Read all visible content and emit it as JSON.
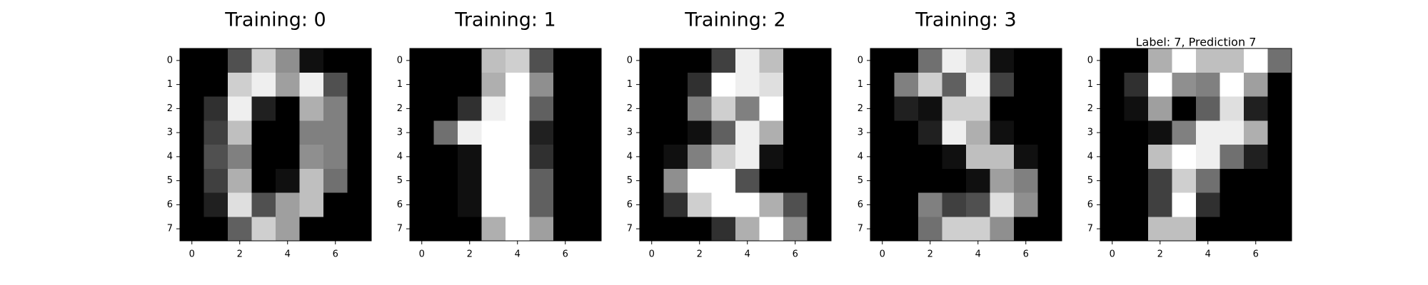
{
  "figure": {
    "background": "#ffffff",
    "colormap": "gray",
    "pixel_value_range": [
      0,
      16
    ]
  },
  "chart_data": [
    {
      "type": "heatmap",
      "title": "Training: 0",
      "x_ticks": [
        "0",
        "2",
        "4",
        "6"
      ],
      "y_ticks": [
        "0",
        "1",
        "2",
        "3",
        "4",
        "5",
        "6",
        "7"
      ],
      "values": [
        [
          0,
          0,
          5,
          13,
          9,
          1,
          0,
          0
        ],
        [
          0,
          0,
          13,
          15,
          10,
          15,
          5,
          0
        ],
        [
          0,
          3,
          15,
          2,
          0,
          11,
          8,
          0
        ],
        [
          0,
          4,
          12,
          0,
          0,
          8,
          8,
          0
        ],
        [
          0,
          5,
          8,
          0,
          0,
          9,
          8,
          0
        ],
        [
          0,
          4,
          11,
          0,
          1,
          12,
          7,
          0
        ],
        [
          0,
          2,
          14,
          5,
          10,
          12,
          0,
          0
        ],
        [
          0,
          0,
          6,
          13,
          10,
          0,
          0,
          0
        ]
      ]
    },
    {
      "type": "heatmap",
      "title": "Training: 1",
      "x_ticks": [
        "0",
        "2",
        "4",
        "6"
      ],
      "y_ticks": [
        "0",
        "1",
        "2",
        "3",
        "4",
        "5",
        "6",
        "7"
      ],
      "values": [
        [
          0,
          0,
          0,
          12,
          13,
          5,
          0,
          0
        ],
        [
          0,
          0,
          0,
          11,
          16,
          9,
          0,
          0
        ],
        [
          0,
          0,
          3,
          15,
          16,
          6,
          0,
          0
        ],
        [
          0,
          7,
          15,
          16,
          16,
          2,
          0,
          0
        ],
        [
          0,
          0,
          1,
          16,
          16,
          3,
          0,
          0
        ],
        [
          0,
          0,
          1,
          16,
          16,
          6,
          0,
          0
        ],
        [
          0,
          0,
          1,
          16,
          16,
          6,
          0,
          0
        ],
        [
          0,
          0,
          0,
          11,
          16,
          10,
          0,
          0
        ]
      ]
    },
    {
      "type": "heatmap",
      "title": "Training: 2",
      "x_ticks": [
        "0",
        "2",
        "4",
        "6"
      ],
      "y_ticks": [
        "0",
        "1",
        "2",
        "3",
        "4",
        "5",
        "6",
        "7"
      ],
      "values": [
        [
          0,
          0,
          0,
          4,
          15,
          12,
          0,
          0
        ],
        [
          0,
          0,
          3,
          16,
          15,
          14,
          0,
          0
        ],
        [
          0,
          0,
          8,
          13,
          8,
          16,
          0,
          0
        ],
        [
          0,
          0,
          1,
          6,
          15,
          11,
          0,
          0
        ],
        [
          0,
          1,
          8,
          13,
          15,
          1,
          0,
          0
        ],
        [
          0,
          9,
          16,
          16,
          5,
          0,
          0,
          0
        ],
        [
          0,
          3,
          13,
          16,
          16,
          11,
          5,
          0
        ],
        [
          0,
          0,
          0,
          3,
          11,
          16,
          9,
          0
        ]
      ]
    },
    {
      "type": "heatmap",
      "title": "Training: 3",
      "x_ticks": [
        "0",
        "2",
        "4",
        "6"
      ],
      "y_ticks": [
        "0",
        "1",
        "2",
        "3",
        "4",
        "5",
        "6",
        "7"
      ],
      "values": [
        [
          0,
          0,
          7,
          15,
          13,
          1,
          0,
          0
        ],
        [
          0,
          8,
          13,
          6,
          15,
          4,
          0,
          0
        ],
        [
          0,
          2,
          1,
          13,
          13,
          0,
          0,
          0
        ],
        [
          0,
          0,
          2,
          15,
          11,
          1,
          0,
          0
        ],
        [
          0,
          0,
          0,
          1,
          12,
          12,
          1,
          0
        ],
        [
          0,
          0,
          0,
          0,
          1,
          10,
          8,
          0
        ],
        [
          0,
          0,
          8,
          4,
          5,
          14,
          9,
          0
        ],
        [
          0,
          0,
          7,
          13,
          13,
          9,
          0,
          0
        ]
      ]
    },
    {
      "type": "heatmap",
      "title": "Label: 7, Prediction 7",
      "x_ticks": [
        "0",
        "2",
        "4",
        "6"
      ],
      "y_ticks": [
        "0",
        "1",
        "2",
        "3",
        "4",
        "5",
        "6",
        "7"
      ],
      "values": [
        [
          0,
          0,
          11,
          16,
          12,
          12,
          16,
          7
        ],
        [
          0,
          3,
          16,
          9,
          8,
          16,
          10,
          0
        ],
        [
          0,
          1,
          10,
          0,
          6,
          14,
          2,
          0
        ],
        [
          0,
          0,
          1,
          8,
          15,
          15,
          11,
          0
        ],
        [
          0,
          0,
          12,
          16,
          15,
          7,
          2,
          0
        ],
        [
          0,
          0,
          4,
          13,
          7,
          0,
          0,
          0
        ],
        [
          0,
          0,
          4,
          16,
          3,
          0,
          0,
          0
        ],
        [
          0,
          0,
          12,
          12,
          0,
          0,
          0,
          0
        ]
      ]
    }
  ]
}
